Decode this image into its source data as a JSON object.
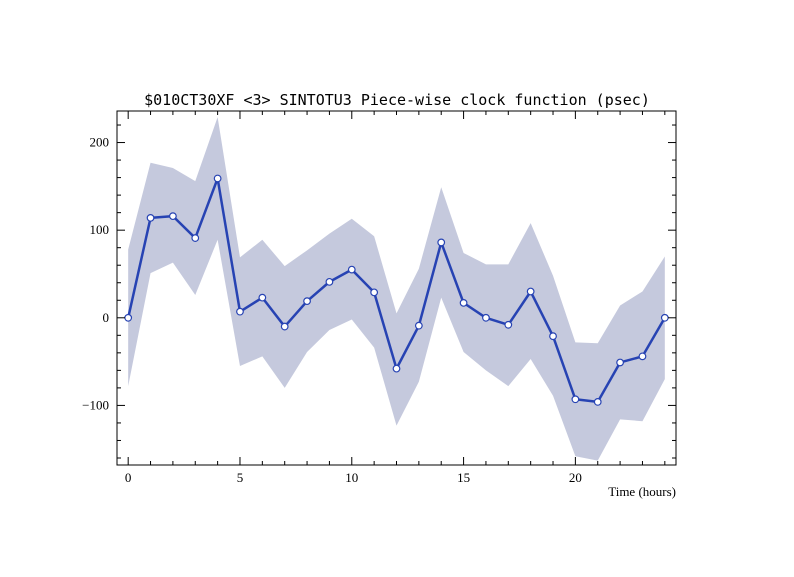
{
  "chart_data": {
    "type": "line",
    "title": "$010CT30XF <3>  SINTOTU3  Piece-wise clock function (psec)",
    "xlabel": "Time (hours)",
    "ylabel": "",
    "xlim": [
      -0.5,
      24.5
    ],
    "ylim": [
      -168,
      236
    ],
    "x_ticks": [
      0,
      5,
      10,
      15,
      20
    ],
    "y_ticks": [
      -100,
      0,
      100,
      200
    ],
    "grid": false,
    "series": [
      {
        "x": [
          0,
          1,
          2,
          3,
          4,
          5,
          6,
          7,
          8,
          9,
          10,
          11,
          12,
          13,
          14,
          15,
          16,
          17,
          18,
          19,
          20,
          21,
          22,
          23,
          24
        ],
        "values": [
          0,
          114,
          116,
          91,
          159,
          7,
          23,
          -10,
          19,
          41,
          55,
          29,
          -58,
          -9,
          86,
          17,
          0,
          -8,
          30,
          -21,
          -93,
          -96,
          -51,
          -44,
          0
        ],
        "upper": [
          78,
          177,
          171,
          156,
          229,
          69,
          89,
          59,
          77,
          96,
          113,
          93,
          5,
          56,
          149,
          74,
          61,
          61,
          108,
          48,
          -28,
          -29,
          14,
          30,
          70
        ],
        "lower": [
          -78,
          51,
          63,
          26,
          89,
          -55,
          -44,
          -80,
          -39,
          -14,
          -2,
          -34,
          -123,
          -73,
          23,
          -39,
          -60,
          -78,
          -47,
          -89,
          -158,
          -163,
          -116,
          -118,
          -70
        ]
      }
    ],
    "colors": {
      "line": "#2743b3",
      "band": "#c5c9dd",
      "marker_fill": "#ffffff",
      "marker_stroke": "#2743b3"
    }
  }
}
